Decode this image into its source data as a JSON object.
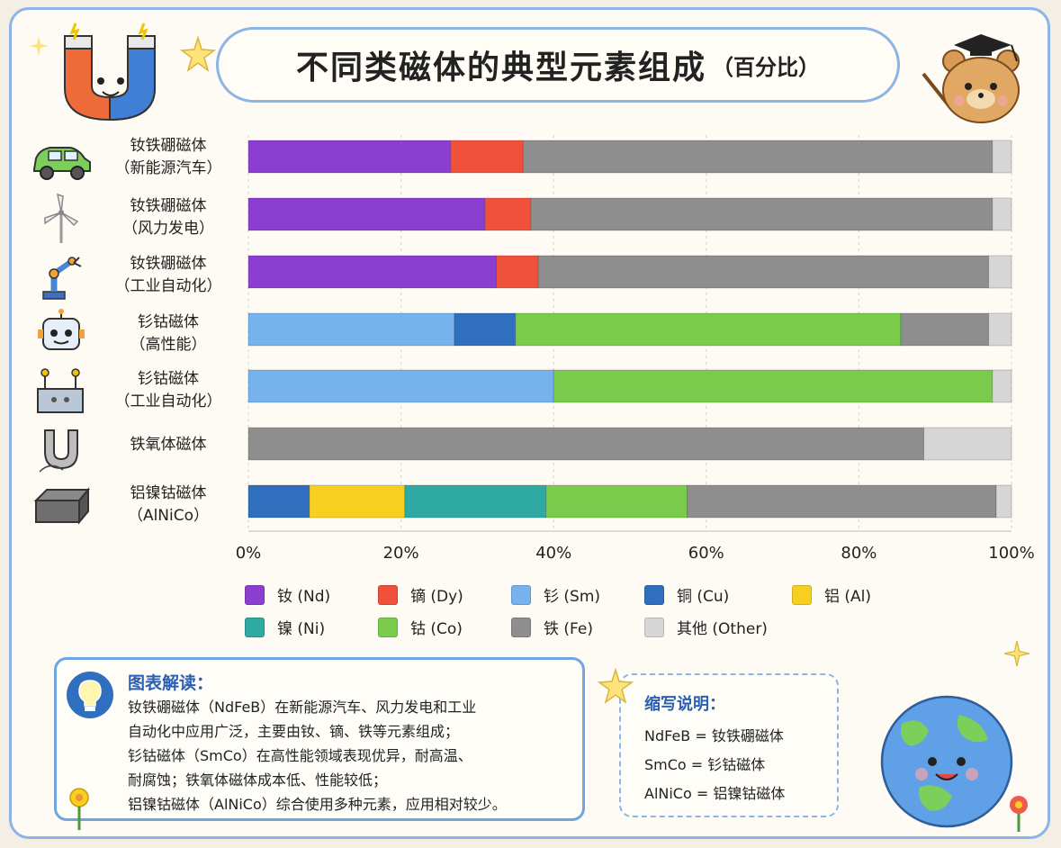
{
  "header": {
    "title": "不同类磁体的典型元素组成",
    "subtitle": "（百分比）"
  },
  "rows": [
    {
      "line1": "钕铁硼磁体",
      "line2": "（新能源汽车）",
      "icon": "car-icon"
    },
    {
      "line1": "钕铁硼磁体",
      "line2": "（风力发电）",
      "icon": "wind-turbine-icon"
    },
    {
      "line1": "钕铁硼磁体",
      "line2": "（工业自动化）",
      "icon": "robot-arm-icon"
    },
    {
      "line1": "钐钴磁体",
      "line2": "（高性能）",
      "icon": "robot-icon"
    },
    {
      "line1": "钐钴磁体",
      "line2": "（工业自动化）",
      "icon": "machine-icon"
    },
    {
      "line1": "铁氧体磁体",
      "line2": "",
      "icon": "horseshoe-magnet-icon"
    },
    {
      "line1": "铝镍钴磁体",
      "line2": "（AlNiCo）",
      "icon": "bar-magnet-icon"
    }
  ],
  "chart_data": {
    "type": "bar",
    "orientation": "horizontal",
    "stacked": true,
    "title": "不同类磁体的典型元素组成（百分比）",
    "categories": [
      "钕铁硼磁体（新能源汽车）",
      "钕铁硼磁体（风力发电）",
      "钕铁硼磁体（工业自动化）",
      "钐钴磁体（高性能）",
      "钐钴磁体（工业自动化）",
      "铁氧体磁体",
      "铝镍钴磁体（AlNiCo）"
    ],
    "series": [
      {
        "name": "钕 (Nd)",
        "color": "#8a3fd1",
        "values": [
          26.5,
          31,
          32.5,
          0,
          0,
          0,
          0
        ]
      },
      {
        "name": "镝 (Dy)",
        "color": "#f0513a",
        "values": [
          9.5,
          6,
          5.5,
          0,
          0,
          0,
          0
        ]
      },
      {
        "name": "钐 (Sm)",
        "color": "#76b3ee",
        "values": [
          0,
          0,
          0,
          27,
          40,
          0,
          0
        ]
      },
      {
        "name": "铜 (Cu)",
        "color": "#2f6fbe",
        "values": [
          0,
          0,
          0,
          8,
          0,
          0,
          8
        ]
      },
      {
        "name": "铝 (Al)",
        "color": "#f6cf21",
        "values": [
          0,
          0,
          0,
          0,
          0,
          0,
          12.5
        ]
      },
      {
        "name": "镍 (Ni)",
        "color": "#2eaaa2",
        "values": [
          0,
          0,
          0,
          0,
          0,
          0,
          18.5
        ]
      },
      {
        "name": "钴 (Co)",
        "color": "#7acb4c",
        "values": [
          0,
          0,
          0,
          50.5,
          57.5,
          0,
          18.5
        ]
      },
      {
        "name": "铁 (Fe)",
        "color": "#8e8e8e",
        "values": [
          61.5,
          60.5,
          59,
          11.5,
          0,
          88.5,
          40.5
        ]
      },
      {
        "name": "其他 (Other)",
        "color": "#d6d6d6",
        "values": [
          2.5,
          2.5,
          3,
          3,
          2.5,
          11.5,
          2
        ]
      }
    ],
    "xlim": [
      0,
      100
    ],
    "x_ticks": [
      "0%",
      "20%",
      "40%",
      "60%",
      "80%",
      "100%"
    ],
    "legend_position": "bottom",
    "grid": true
  },
  "info": {
    "title": "图表解读：",
    "lines": [
      "钕铁硼磁体（NdFeB）在新能源汽车、风力发电和工业",
      "自动化中应用广泛，主要由钕、镝、铁等元素组成；",
      "钐钴磁体（SmCo）在高性能领域表现优异，耐高温、",
      "耐腐蚀；铁氧体磁体成本低、性能较低；",
      "铝镍钴磁体（AlNiCo）综合使用多种元素，应用相对较少。"
    ]
  },
  "abbr": {
    "title": "缩写说明：",
    "lines": [
      "NdFeB = 钕铁硼磁体",
      "SmCo = 钐钴磁体",
      "AlNiCo = 铝镍钴磁体"
    ]
  }
}
